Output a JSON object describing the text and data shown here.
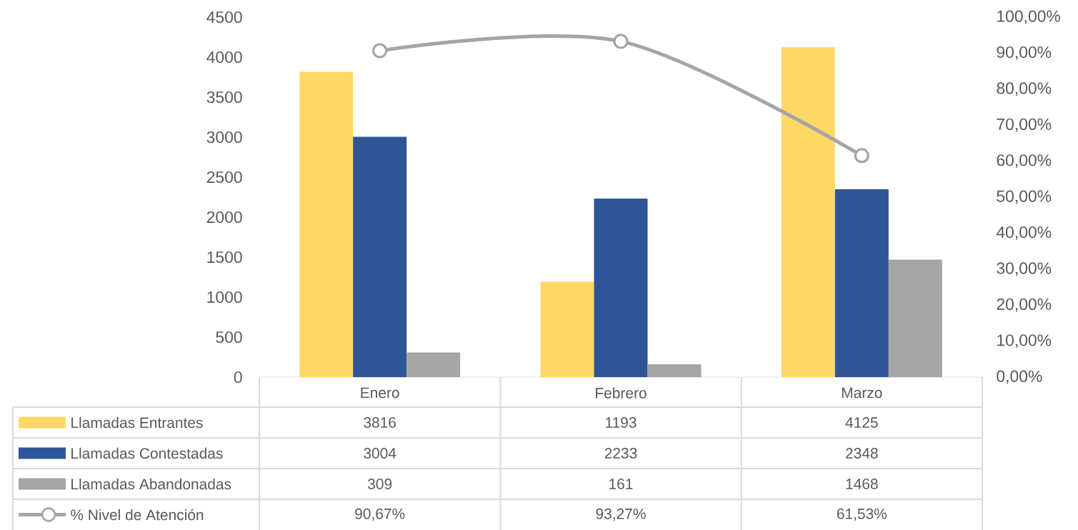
{
  "chart_data": {
    "type": "bar",
    "categories": [
      "Enero",
      "Febrero",
      "Marzo"
    ],
    "series": [
      {
        "name": "Llamadas Entrantes",
        "color": "#ffd966",
        "values": [
          3816,
          1193,
          4125
        ]
      },
      {
        "name": "Llamadas Contestadas",
        "color": "#2f5597",
        "values": [
          3004,
          2233,
          2348
        ]
      },
      {
        "name": "Llamadas Abandonadas",
        "color": "#a5a5a5",
        "values": [
          309,
          161,
          1468
        ]
      },
      {
        "name": "% Nivel de Atención",
        "type": "line",
        "axis": "y2",
        "color": "#a5a5a5",
        "values": [
          90.67,
          93.27,
          61.53
        ],
        "value_labels": [
          "90,67%",
          "93,27%",
          "61,53%"
        ]
      }
    ],
    "ylim": [
      0,
      4500
    ],
    "yticks": [
      0,
      500,
      1000,
      1500,
      2000,
      2500,
      3000,
      3500,
      4000,
      4500
    ],
    "y2lim": [
      0,
      100
    ],
    "y2ticks": [
      {
        "value": 0,
        "label": "0,00%"
      },
      {
        "value": 10,
        "label": "10,00%"
      },
      {
        "value": 20,
        "label": "20,00%"
      },
      {
        "value": 30,
        "label": "30,00%"
      },
      {
        "value": 40,
        "label": "40,00%"
      },
      {
        "value": 50,
        "label": "50,00%"
      },
      {
        "value": 60,
        "label": "60,00%"
      },
      {
        "value": 70,
        "label": "70,00%"
      },
      {
        "value": 80,
        "label": "80,00%"
      },
      {
        "value": 90,
        "label": "90,00%"
      },
      {
        "value": 100,
        "label": "100,00%"
      }
    ],
    "data_labels": true,
    "legend": "bottom",
    "marker": "circle"
  }
}
